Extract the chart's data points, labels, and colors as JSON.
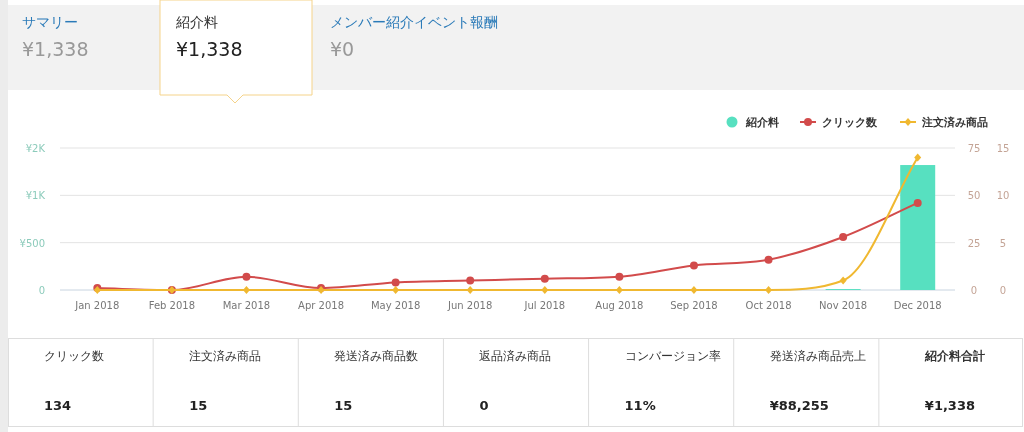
{
  "chart_data": [
    {
      "type": "other",
      "annotations": [
        "サマリー",
        "¥1,338",
        "紹介料",
        "¥1,338",
        "メンバー紹介イベント報酬",
        "¥0"
      ]
    },
    {
      "type": "bar",
      "categories": [
        "Jan 2018",
        "Feb 2018",
        "Mar 2018",
        "Apr 2018",
        "May 2018",
        "Jun 2018",
        "Jul 2018",
        "Aug 2018",
        "Sep 2018",
        "Oct 2018",
        "Nov 2018",
        "Dec 2018"
      ],
      "ylim": [
        0,
        1500
      ],
      "yticks": [
        {
          "value": 0,
          "label": "0"
        },
        {
          "value": 500,
          "label": "¥500"
        },
        {
          "value": 1000,
          "label": "¥1K"
        },
        {
          "value": 1500,
          "label": "¥2K"
        }
      ],
      "y2lim": [
        0,
        75
      ],
      "y2ticks": [
        0,
        25,
        50,
        75
      ],
      "y3lim": [
        0,
        15
      ],
      "y3ticks": [
        0,
        5,
        10,
        15
      ],
      "grid": "y",
      "legend": "top right",
      "series": [
        {
          "name": "紹介料",
          "type": "bar",
          "color": "#57e0c0",
          "values": [
            0,
            0,
            0,
            0,
            0,
            0,
            0,
            0,
            0,
            0,
            10,
            1320
          ]
        },
        {
          "name": "クリック数",
          "type": "line",
          "axis": "y2",
          "color": "#d24b4b",
          "marker": "circle",
          "values": [
            1,
            0,
            7,
            1,
            4,
            5,
            6,
            7,
            13,
            16,
            28,
            46
          ]
        },
        {
          "name": "注文済み商品",
          "type": "line",
          "axis": "y3",
          "color": "#f0b830",
          "marker": "diamond",
          "values": [
            0,
            0,
            0,
            0,
            0,
            0,
            0,
            0,
            0,
            0,
            1,
            14
          ]
        }
      ]
    },
    {
      "type": "other",
      "annotations": [
        "クリック数",
        "134",
        "注文済み商品",
        "15",
        "発送済み商品数",
        "15",
        "返品済み商品",
        "0",
        "コンバージョン率",
        "11%",
        "発送済み商品売上",
        "¥88,255",
        "紹介料合計",
        "¥1,338"
      ]
    }
  ]
}
